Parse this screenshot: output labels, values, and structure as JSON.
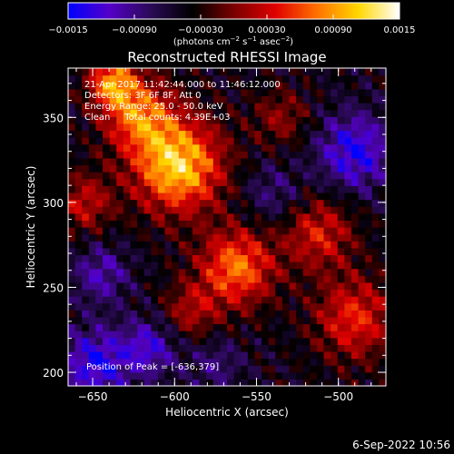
{
  "chart_data": {
    "type": "heatmap",
    "title": "Reconstructed RHESSI Image",
    "xlabel": "Heliocentric X (arcsec)",
    "ylabel": "Heliocentric Y (arcsec)",
    "xlim": [
      -665,
      -471
    ],
    "ylim": [
      192,
      379
    ],
    "x_ticks": [
      -650,
      -600,
      -550,
      -500
    ],
    "x_tick_labels": [
      "−650",
      "−600",
      "−550",
      "−500"
    ],
    "y_ticks": [
      200,
      250,
      300,
      350
    ],
    "y_tick_labels": [
      "200",
      "250",
      "300",
      "350"
    ],
    "colorbar": {
      "range": [
        -0.0015,
        0.0015
      ],
      "tick_values": [
        -0.0015,
        -0.0009,
        -0.0003,
        0.0003,
        0.0009,
        0.0015
      ],
      "tick_labels": [
        "−0.0015",
        "−0.00090",
        "−0.00030",
        "0.00030",
        "0.00090",
        "0.0015"
      ],
      "units_prefix": "(photons cm",
      "units_exp1": "−2",
      "units_mid": " s",
      "units_exp2": "−1",
      "units_mid2": " asec",
      "units_exp3": "−2",
      "units_suffix": ")",
      "colors": [
        "#0000ff",
        "#5500c8",
        "#2a0a55",
        "#000000",
        "#7a0000",
        "#e00000",
        "#ff7000",
        "#ffd700",
        "#ffffff"
      ]
    },
    "info_lines": [
      "21-Apr-2017 11:42:44.000 to 11:46:12.000",
      "Detectors: 3F 6F 8F, Att 0",
      "Energy Range: 25.0 - 50.0 keV",
      "Clean     Total counts: 4.39E+03"
    ],
    "peak_label": "Position of Peak = [-636,379]",
    "grid": false,
    "sources": [
      {
        "x": -598,
        "y": 322,
        "amp": 0.0016,
        "sigma": 19
      },
      {
        "x": -622,
        "y": 352,
        "amp": 0.0011,
        "sigma": 15
      },
      {
        "x": -638,
        "y": 371,
        "amp": 0.0012,
        "sigma": 10
      },
      {
        "x": -562,
        "y": 262,
        "amp": 0.0012,
        "sigma": 16
      },
      {
        "x": -512,
        "y": 282,
        "amp": 0.0008,
        "sigma": 15
      },
      {
        "x": -490,
        "y": 232,
        "amp": 0.0009,
        "sigma": 17
      },
      {
        "x": -655,
        "y": 300,
        "amp": 0.0007,
        "sigma": 12
      },
      {
        "x": -535,
        "y": 350,
        "amp": 0.0005,
        "sigma": 12
      },
      {
        "x": -590,
        "y": 236,
        "amp": 0.0006,
        "sigma": 12
      },
      {
        "x": -648,
        "y": 205,
        "amp": -0.0009,
        "sigma": 15
      },
      {
        "x": -615,
        "y": 215,
        "amp": -0.0007,
        "sigma": 12
      },
      {
        "x": -490,
        "y": 330,
        "amp": -0.0009,
        "sigma": 16
      },
      {
        "x": -540,
        "y": 305,
        "amp": -0.0004,
        "sigma": 13
      },
      {
        "x": -645,
        "y": 258,
        "amp": -0.0006,
        "sigma": 12
      },
      {
        "x": -575,
        "y": 205,
        "amp": -0.0004,
        "sigma": 12
      }
    ]
  },
  "footer": {
    "timestamp": "6-Sep-2022 10:56"
  }
}
